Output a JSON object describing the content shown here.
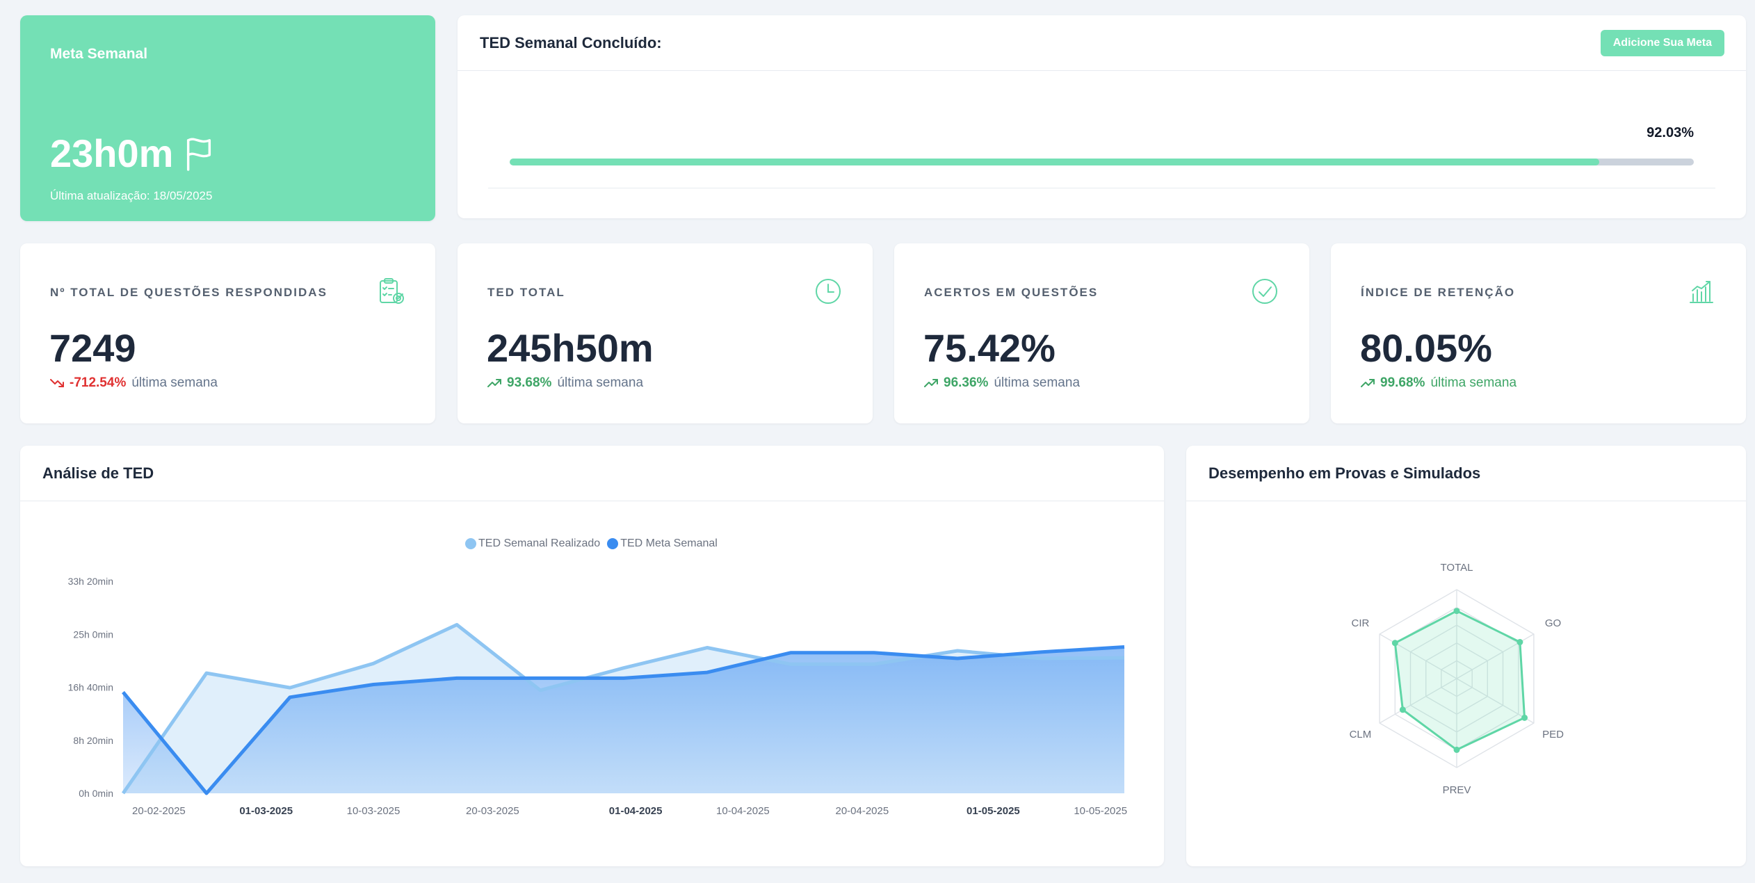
{
  "colors": {
    "accent_green": "#74e0b5",
    "trend_down": "#e03131",
    "trend_up": "#3ea566",
    "series_realizado": "#8ec5f2",
    "series_meta": "#3a8cf0"
  },
  "meta_semanal": {
    "title": "Meta Semanal",
    "value": "23h0m",
    "icon": "flag-icon",
    "updated": "Última atualização: 18/05/2025"
  },
  "ted_concluido": {
    "title": "TED Semanal Concluído:",
    "button_label": "Adicione Sua Meta",
    "percent_label": "92.03%",
    "percent": 92.03
  },
  "stats": [
    {
      "label": "Nº TOTAL DE QUESTÕES RESPONDIDAS",
      "value": "7249",
      "trend": "-712.54%",
      "trend_direction": "down",
      "caption": "última semana",
      "icon": "clipboard-target-icon"
    },
    {
      "label": "TED TOTAL",
      "value": "245h50m",
      "trend": "93.68%",
      "trend_direction": "up",
      "caption": "última semana",
      "icon": "clock-icon"
    },
    {
      "label": "ACERTOS EM QUESTÕES",
      "value": "75.42%",
      "trend": "96.36%",
      "trend_direction": "up",
      "caption": "última semana",
      "icon": "check-circle-icon"
    },
    {
      "label": "ÍNDICE DE RETENÇÃO",
      "value": "80.05%",
      "trend": "99.68%",
      "trend_direction": "up",
      "caption": "última semana",
      "icon": "bar-chart-icon"
    }
  ],
  "chart_data": [
    {
      "type": "area",
      "title": "Análise de TED",
      "x_ticks": [
        "20-02-2025",
        "01-03-2025",
        "10-03-2025",
        "20-03-2025",
        "01-04-2025",
        "10-04-2025",
        "20-04-2025",
        "01-05-2025",
        "10-05-2025"
      ],
      "x_ticks_bold": [
        "01-03-2025",
        "01-04-2025",
        "01-05-2025"
      ],
      "y_ticks": [
        "0h 0min",
        "8h 20min",
        "16h 40min",
        "25h 0min",
        "33h 20min"
      ],
      "ylim_hours": [
        0,
        33.3333
      ],
      "x": [
        "2025-02-17",
        "2025-02-24",
        "2025-03-03",
        "2025-03-10",
        "2025-03-17",
        "2025-03-24",
        "2025-03-31",
        "2025-04-07",
        "2025-04-14",
        "2025-04-21",
        "2025-04-28",
        "2025-05-05",
        "2025-05-12"
      ],
      "series": [
        {
          "name": "TED Semanal Realizado",
          "values_hours": [
            0,
            18.9,
            16.6,
            20.4,
            26.5,
            16.2,
            19.7,
            22.9,
            20.3,
            20.3,
            22.4,
            21.2,
            21.3
          ]
        },
        {
          "name": "TED Meta Semanal",
          "values_hours": [
            15.9,
            0,
            15.1,
            17.1,
            18.1,
            18.1,
            18.1,
            19.0,
            22.1,
            22.1,
            21.2,
            22.2,
            23.0
          ]
        }
      ],
      "legend_position": "top-center",
      "grid": false
    },
    {
      "type": "radar",
      "title": "Desempenho em Provas e Simulados",
      "axes": [
        "TOTAL",
        "GO",
        "PED",
        "PREV",
        "CLM",
        "CIR"
      ],
      "values": [
        76,
        82,
        88,
        80,
        70,
        80
      ],
      "max": 100,
      "rings": 5,
      "grid": true
    }
  ]
}
